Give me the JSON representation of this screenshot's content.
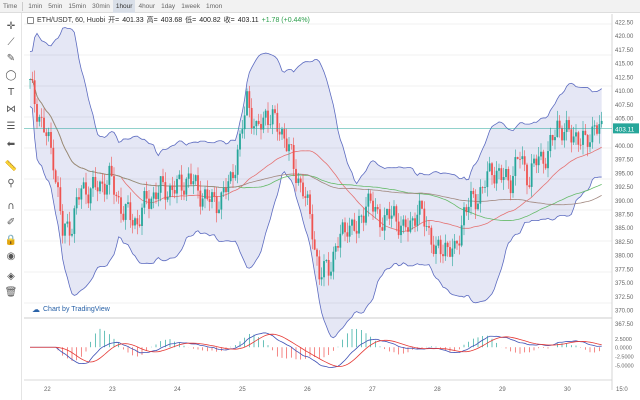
{
  "timeframes": [
    "Time",
    "1min",
    "5min",
    "15min",
    "30min",
    "1hour",
    "4hour",
    "1day",
    "1week",
    "1mon"
  ],
  "active_timeframe": "1hour",
  "legend": {
    "symbol": "ETH/USDT, 60, Huobi",
    "open_label": "开=",
    "open": "401.33",
    "high_label": "高=",
    "high": "403.68",
    "low_label": "低=",
    "low": "400.82",
    "close_label": "收=",
    "close": "403.11",
    "change": "+1.78 (+0.44%)"
  },
  "credit": "Chart by TradingView",
  "last_price_badge": "403.11",
  "toolbar_icons": [
    "crosshair-icon",
    "line-icon",
    "brush-icon",
    "ellipse-icon",
    "text-icon",
    "pattern-icon",
    "fib-icon",
    "arrow-left-icon",
    "ruler-icon",
    "zoom-icon",
    "magnet-icon",
    "lock-draw-icon",
    "lock-icon",
    "eye-icon",
    "layers-icon",
    "trash-icon"
  ],
  "colors": {
    "up": "#26a69a",
    "down": "#ef5350",
    "band": "#5c6bc0",
    "band_fill": "rgba(92,107,192,0.16)",
    "ma_red": "#e57373",
    "ma_green": "#66bb6a",
    "ma_brown": "#a1887f",
    "price_line": "#26a69a"
  },
  "chart_data": {
    "type": "candlestick",
    "title": "ETH/USDT, 60, Huobi",
    "ylim": [
      370,
      422.5
    ],
    "y_ticks": [
      "422.50",
      "420.00",
      "417.50",
      "415.00",
      "412.50",
      "410.00",
      "407.50",
      "405.00",
      "403.11",
      "400.00",
      "397.50",
      "395.00",
      "392.50",
      "390.00",
      "387.50",
      "385.00",
      "382.50",
      "380.00",
      "377.50",
      "375.00",
      "372.50",
      "370.00",
      "367.50"
    ],
    "x_ticks": [
      "22",
      "23",
      "24",
      "25",
      "26",
      "27",
      "28",
      "29",
      "30",
      "15:0"
    ],
    "price_anchors": [
      [
        0,
        411
      ],
      [
        5,
        404
      ],
      [
        10,
        398
      ],
      [
        14,
        384
      ],
      [
        18,
        386
      ],
      [
        22,
        392
      ],
      [
        28,
        392
      ],
      [
        34,
        394
      ],
      [
        40,
        388
      ],
      [
        46,
        386
      ],
      [
        50,
        390
      ],
      [
        56,
        392
      ],
      [
        62,
        392
      ],
      [
        68,
        394
      ],
      [
        72,
        392
      ],
      [
        76,
        390
      ],
      [
        82,
        390
      ],
      [
        86,
        394
      ],
      [
        90,
        400
      ],
      [
        93,
        409
      ],
      [
        97,
        402
      ],
      [
        101,
        406
      ],
      [
        105,
        404
      ],
      [
        109,
        402
      ],
      [
        113,
        396
      ],
      [
        117,
        392
      ],
      [
        121,
        385
      ],
      [
        124,
        376
      ],
      [
        128,
        378
      ],
      [
        132,
        382
      ],
      [
        136,
        386
      ],
      [
        140,
        384
      ],
      [
        144,
        390
      ],
      [
        148,
        388
      ],
      [
        152,
        386
      ],
      [
        156,
        388
      ],
      [
        160,
        384
      ],
      [
        166,
        388
      ],
      [
        170,
        386
      ],
      [
        174,
        380
      ],
      [
        178,
        382
      ],
      [
        182,
        380
      ],
      [
        186,
        388
      ],
      [
        190,
        390
      ],
      [
        194,
        392
      ],
      [
        198,
        396
      ],
      [
        202,
        394
      ],
      [
        206,
        394
      ],
      [
        210,
        398
      ],
      [
        214,
        394
      ],
      [
        218,
        398
      ],
      [
        222,
        398
      ],
      [
        226,
        404
      ],
      [
        230,
        402
      ],
      [
        234,
        402
      ],
      [
        238,
        400
      ],
      [
        242,
        404
      ],
      [
        245,
        402
      ]
    ],
    "candle_count": 246,
    "macd_ylim": [
      -7,
      6
    ],
    "macd_ticks": [
      "2.5000",
      "0.0000",
      "-2.5000",
      "-5.0000"
    ]
  }
}
